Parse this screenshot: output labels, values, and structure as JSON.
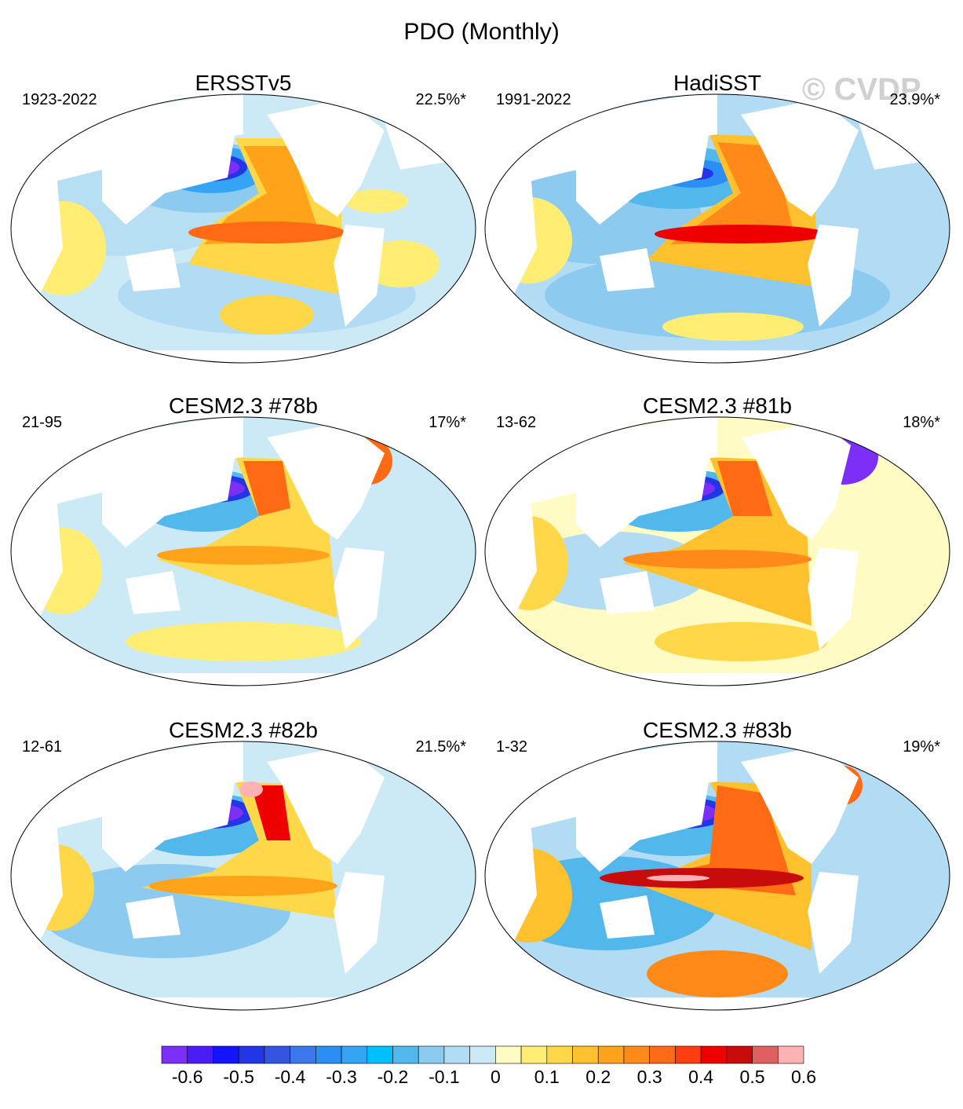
{
  "title": "PDO (Monthly)",
  "watermark": "© CVDP",
  "panels": [
    {
      "name": "ERSSTv5",
      "period": "1923-2022",
      "variance": "22.5%*"
    },
    {
      "name": "HadiSST",
      "period": "1991-2022",
      "variance": "23.9%*"
    },
    {
      "name": "CESM2.3 #78b",
      "period": "21-95",
      "variance": "17%*"
    },
    {
      "name": "CESM2.3 #81b",
      "period": "13-62",
      "variance": "18%*"
    },
    {
      "name": "CESM2.3 #82b",
      "period": "12-61",
      "variance": "21.5%*"
    },
    {
      "name": "CESM2.3 #83b",
      "period": "1-32",
      "variance": "19%*"
    }
  ],
  "colorbar": {
    "colors": [
      "#7b2ff7",
      "#4a1df5",
      "#1414ff",
      "#2336e6",
      "#3355e0",
      "#3a77ec",
      "#2b8ef2",
      "#35a4f4",
      "#00bfff",
      "#52b8ec",
      "#8ccaf0",
      "#b2dcf3",
      "#cce9f6",
      "#fffbc4",
      "#ffee73",
      "#ffd84a",
      "#ffc12e",
      "#ffa31a",
      "#ff8a1a",
      "#ff6a14",
      "#ff3d0f",
      "#ee0000",
      "#c80c0c",
      "#e06060",
      "#ffb2b4"
    ],
    "labels": [
      "-0.6",
      "-0.5",
      "-0.4",
      "-0.3",
      "-0.2",
      "-0.1",
      "0",
      "0.1",
      "0.2",
      "0.3",
      "0.4",
      "0.5",
      "0.6"
    ]
  }
}
